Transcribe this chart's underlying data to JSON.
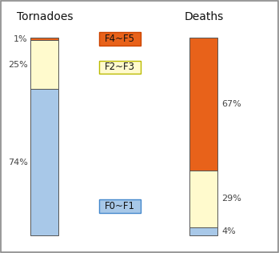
{
  "tornadoes": {
    "F0_F1": 74,
    "F2_F3": 25,
    "F4_F5": 1
  },
  "deaths": {
    "F0_F1": 4,
    "F2_F3": 29,
    "F4_F5": 67
  },
  "colors": {
    "F0_F1": "#a8c8e8",
    "F2_F3": "#fffacd",
    "F4_F5": "#e8621a"
  },
  "border_color": "#555555",
  "title_tornadoes": "Tornadoes",
  "title_deaths": "Deaths",
  "legend_labels": [
    "F4~F5",
    "F2~F3",
    "F0~F1"
  ],
  "legend_colors": [
    "#e8621a",
    "#fffacd",
    "#a8c8e8"
  ],
  "legend_border_colors": [
    "#cc4400",
    "#bbbb00",
    "#4488cc"
  ],
  "background_color": "#ffffff",
  "outer_border_color": "#888888"
}
